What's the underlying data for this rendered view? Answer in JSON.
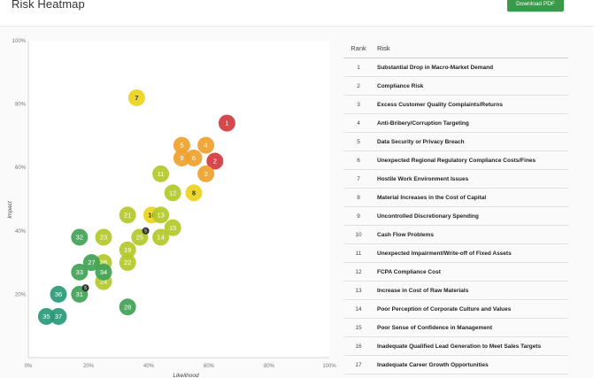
{
  "header": {
    "title": "Risk Heatmap",
    "download_label": "Download PDF"
  },
  "chart_data": {
    "type": "scatter",
    "xlabel": "Likelihood",
    "ylabel": "Impact",
    "xlim": [
      0,
      100
    ],
    "ylim": [
      0,
      100
    ],
    "x_ticks": [
      "0%",
      "20%",
      "40%",
      "60%",
      "80%",
      "100%"
    ],
    "y_ticks": [
      "20%",
      "40%",
      "60%",
      "80%",
      "100%"
    ],
    "colors": {
      "red": "#d43a3e",
      "orange": "#efa12d",
      "yellow": "#ecd41f",
      "lime": "#b4c92b",
      "green": "#42a256",
      "teal": "#2b9a7a"
    },
    "points": [
      {
        "label": "1",
        "x": 66,
        "y": 74,
        "color": "red"
      },
      {
        "label": "2",
        "x": 62,
        "y": 62,
        "color": "red"
      },
      {
        "label": "3",
        "x": 59,
        "y": 58,
        "color": "orange"
      },
      {
        "label": "4",
        "x": 59,
        "y": 67,
        "color": "orange"
      },
      {
        "label": "5",
        "x": 51,
        "y": 67,
        "color": "orange"
      },
      {
        "label": "6",
        "x": 55,
        "y": 63,
        "color": "orange"
      },
      {
        "label": "9",
        "x": 51,
        "y": 63,
        "color": "orange"
      },
      {
        "label": "7",
        "x": 36,
        "y": 82,
        "color": "yellow"
      },
      {
        "label": "8",
        "x": 55,
        "y": 52,
        "color": "yellow"
      },
      {
        "label": "10",
        "x": 41,
        "y": 45,
        "color": "yellow"
      },
      {
        "label": "11",
        "x": 44,
        "y": 58,
        "color": "lime"
      },
      {
        "label": "12",
        "x": 48,
        "y": 52,
        "color": "lime"
      },
      {
        "label": "13",
        "x": 44,
        "y": 45,
        "color": "lime"
      },
      {
        "label": "14",
        "x": 44,
        "y": 38,
        "color": "lime"
      },
      {
        "label": "15",
        "x": 48,
        "y": 41,
        "color": "lime"
      },
      {
        "label": "21",
        "x": 33,
        "y": 45,
        "color": "lime"
      },
      {
        "label": "23",
        "x": 25,
        "y": 38,
        "color": "lime"
      },
      {
        "label": "25",
        "x": 37,
        "y": 38,
        "color": "lime"
      },
      {
        "label": "19",
        "x": 33,
        "y": 34,
        "color": "lime"
      },
      {
        "label": "22",
        "x": 33,
        "y": 30,
        "color": "lime"
      },
      {
        "label": "26",
        "x": 25,
        "y": 30,
        "color": "lime"
      },
      {
        "label": "24",
        "x": 25,
        "y": 24,
        "color": "lime"
      },
      {
        "label": "27",
        "x": 21,
        "y": 30,
        "color": "green"
      },
      {
        "label": "32",
        "x": 17,
        "y": 38,
        "color": "green"
      },
      {
        "label": "33",
        "x": 17,
        "y": 27,
        "color": "green"
      },
      {
        "label": "34",
        "x": 25,
        "y": 27,
        "color": "green"
      },
      {
        "label": "31",
        "x": 17,
        "y": 20,
        "color": "green"
      },
      {
        "label": "28",
        "x": 33,
        "y": 16,
        "color": "green"
      },
      {
        "label": "36",
        "x": 10,
        "y": 20,
        "color": "teal"
      },
      {
        "label": "35",
        "x": 6,
        "y": 13,
        "color": "teal"
      },
      {
        "label": "37",
        "x": 10,
        "y": 13,
        "color": "teal"
      }
    ],
    "badges": [
      {
        "label": "5",
        "x": 39,
        "y": 40
      },
      {
        "label": "5",
        "x": 19,
        "y": 22
      }
    ]
  },
  "table": {
    "headers": [
      "Rank",
      "Risk"
    ],
    "rows": [
      {
        "rank": "1",
        "risk": "Substantial Drop in Macro-Market Demand"
      },
      {
        "rank": "2",
        "risk": "Compliance Risk"
      },
      {
        "rank": "3",
        "risk": "Excess Customer Quality Complaints/Returns"
      },
      {
        "rank": "4",
        "risk": "Anti-Bribery/Corruption Targeting"
      },
      {
        "rank": "5",
        "risk": "Data Security or Privacy Breach"
      },
      {
        "rank": "6",
        "risk": "Unexpected Regional Regulatory Compliance Costs/Fines"
      },
      {
        "rank": "7",
        "risk": "Hostile Work Environment Issues"
      },
      {
        "rank": "8",
        "risk": "Material Increases in the Cost of Capital"
      },
      {
        "rank": "9",
        "risk": "Uncontrolled Discretionary Spending"
      },
      {
        "rank": "10",
        "risk": "Cash Flow Problems"
      },
      {
        "rank": "11",
        "risk": "Unexpected Impairment/Write-off of Fixed Assets"
      },
      {
        "rank": "12",
        "risk": "FCPA Compliance Cost"
      },
      {
        "rank": "13",
        "risk": "Increase in Cost of Raw Materials"
      },
      {
        "rank": "14",
        "risk": "Poor Perception of Corporate Culture and Values"
      },
      {
        "rank": "15",
        "risk": "Poor Sense of Confidence in Management"
      },
      {
        "rank": "16",
        "risk": "Inadequate Qualified Lead Generation to Meet Sales Targets"
      },
      {
        "rank": "17",
        "risk": "Inadequate Career Growth Opportunities"
      }
    ]
  }
}
